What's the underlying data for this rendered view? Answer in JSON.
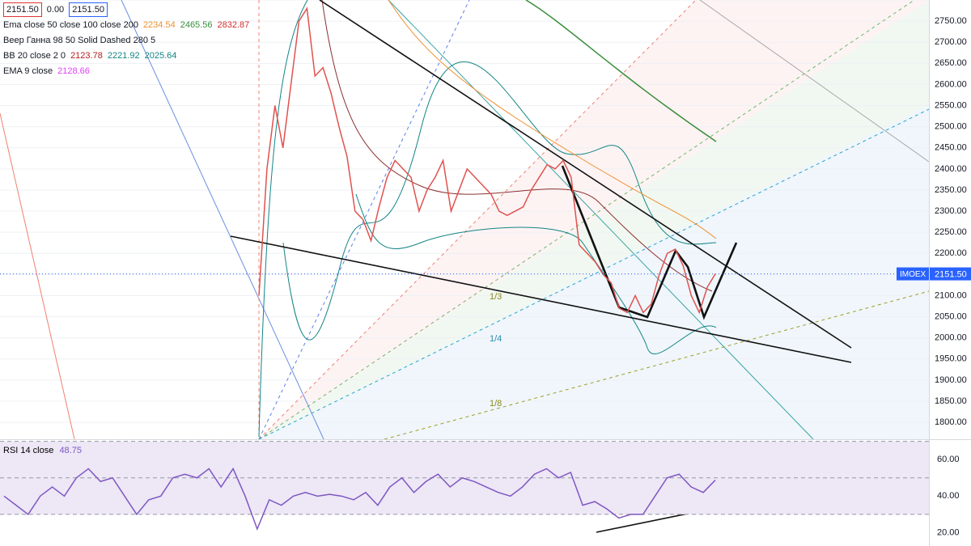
{
  "chart_data": [
    {
      "type": "line",
      "symbol": "IMOEX",
      "last_price_label": "2151.50",
      "header_boxes": [
        "2151.50",
        "0.00",
        "2151.50"
      ],
      "legend": [
        {
          "text": "Ema close 50 close 100 close 200",
          "values": [
            {
              "text": "2234.54",
              "color": "#f0902e"
            },
            {
              "text": "2465.56",
              "color": "#388e3c"
            },
            {
              "text": "2832.87",
              "color": "#d32f2f"
            }
          ]
        },
        {
          "text": "Веер Ганна 98 50 Solid Dashed 280 5",
          "values": []
        },
        {
          "text": "BB 20 close 2 0",
          "values": [
            {
              "text": "2123.78",
              "color": "#b71c1c"
            },
            {
              "text": "2221.92",
              "color": "#138484"
            },
            {
              "text": "2025.64",
              "color": "#138484"
            }
          ]
        },
        {
          "text": "EMA 9 close",
          "values": [
            {
              "text": "2128.66",
              "color": "#e040fb"
            }
          ]
        }
      ],
      "fan_labels": [
        "1/3",
        "1/4",
        "1/8"
      ],
      "color": "#e0524f",
      "values": [
        2100,
        2400,
        2550,
        2450,
        2600,
        2750,
        2780,
        2620,
        2640,
        2580,
        2500,
        2430,
        2300,
        2280,
        2230,
        2310,
        2380,
        2420,
        2400,
        2380,
        2300,
        2350,
        2380,
        2420,
        2300,
        2350,
        2400,
        2380,
        2360,
        2340,
        2300,
        2290,
        2300,
        2310,
        2350,
        2380,
        2410,
        2400,
        2420,
        2380,
        2220,
        2200,
        2180,
        2150,
        2130,
        2070,
        2060,
        2100,
        2060,
        2080,
        2150,
        2200,
        2210,
        2170,
        2100,
        2060,
        2120,
        2151.5
      ],
      "ylim": [
        1760,
        2800
      ],
      "yticks": [
        {
          "value": 1800,
          "label": "1800.00"
        },
        {
          "value": 1850,
          "label": "1850.00"
        },
        {
          "value": 1900,
          "label": "1900.00"
        },
        {
          "value": 1950,
          "label": "1950.00"
        },
        {
          "value": 2000,
          "label": "2000.00"
        },
        {
          "value": 2050,
          "label": "2050.00"
        },
        {
          "value": 2100,
          "label": "2100.00"
        },
        {
          "value": 2150,
          "label": "2150.00"
        },
        {
          "value": 2200,
          "label": "2200.00"
        },
        {
          "value": 2250,
          "label": "2250.00"
        },
        {
          "value": 2300,
          "label": "2300.00"
        },
        {
          "value": 2350,
          "label": "2350.00"
        },
        {
          "value": 2400,
          "label": "2400.00"
        },
        {
          "value": 2450,
          "label": "2450.00"
        },
        {
          "value": 2500,
          "label": "2500.00"
        },
        {
          "value": 2550,
          "label": "2550.00"
        },
        {
          "value": 2600,
          "label": "2600.00"
        },
        {
          "value": 2650,
          "label": "2650.00"
        },
        {
          "value": 2700,
          "label": "2700.00"
        },
        {
          "value": 2750,
          "label": "2750.00"
        },
        {
          "value": 2800,
          "label": "2800.00"
        }
      ],
      "grid": true
    },
    {
      "type": "line",
      "title": "RSI 14 close",
      "value_label": "48.75",
      "color": "#7e57c2",
      "values": [
        40,
        35,
        30,
        40,
        45,
        40,
        50,
        55,
        48,
        50,
        40,
        30,
        38,
        40,
        50,
        52,
        50,
        55,
        45,
        55,
        40,
        22,
        38,
        35,
        40,
        42,
        40,
        41,
        40,
        38,
        42,
        35,
        45,
        50,
        42,
        48,
        52,
        45,
        50,
        48,
        45,
        42,
        40,
        45,
        52,
        55,
        50,
        53,
        35,
        37,
        33,
        28,
        30,
        30,
        40,
        50,
        52,
        45,
        42,
        48.75
      ],
      "ylim": [
        12.7,
        70.7
      ],
      "yticks": [
        {
          "value": 20,
          "label": "20.00"
        },
        {
          "value": 40,
          "label": "40.00"
        },
        {
          "value": 60,
          "label": "60.00"
        }
      ],
      "levels": [
        30,
        50,
        70
      ]
    }
  ]
}
